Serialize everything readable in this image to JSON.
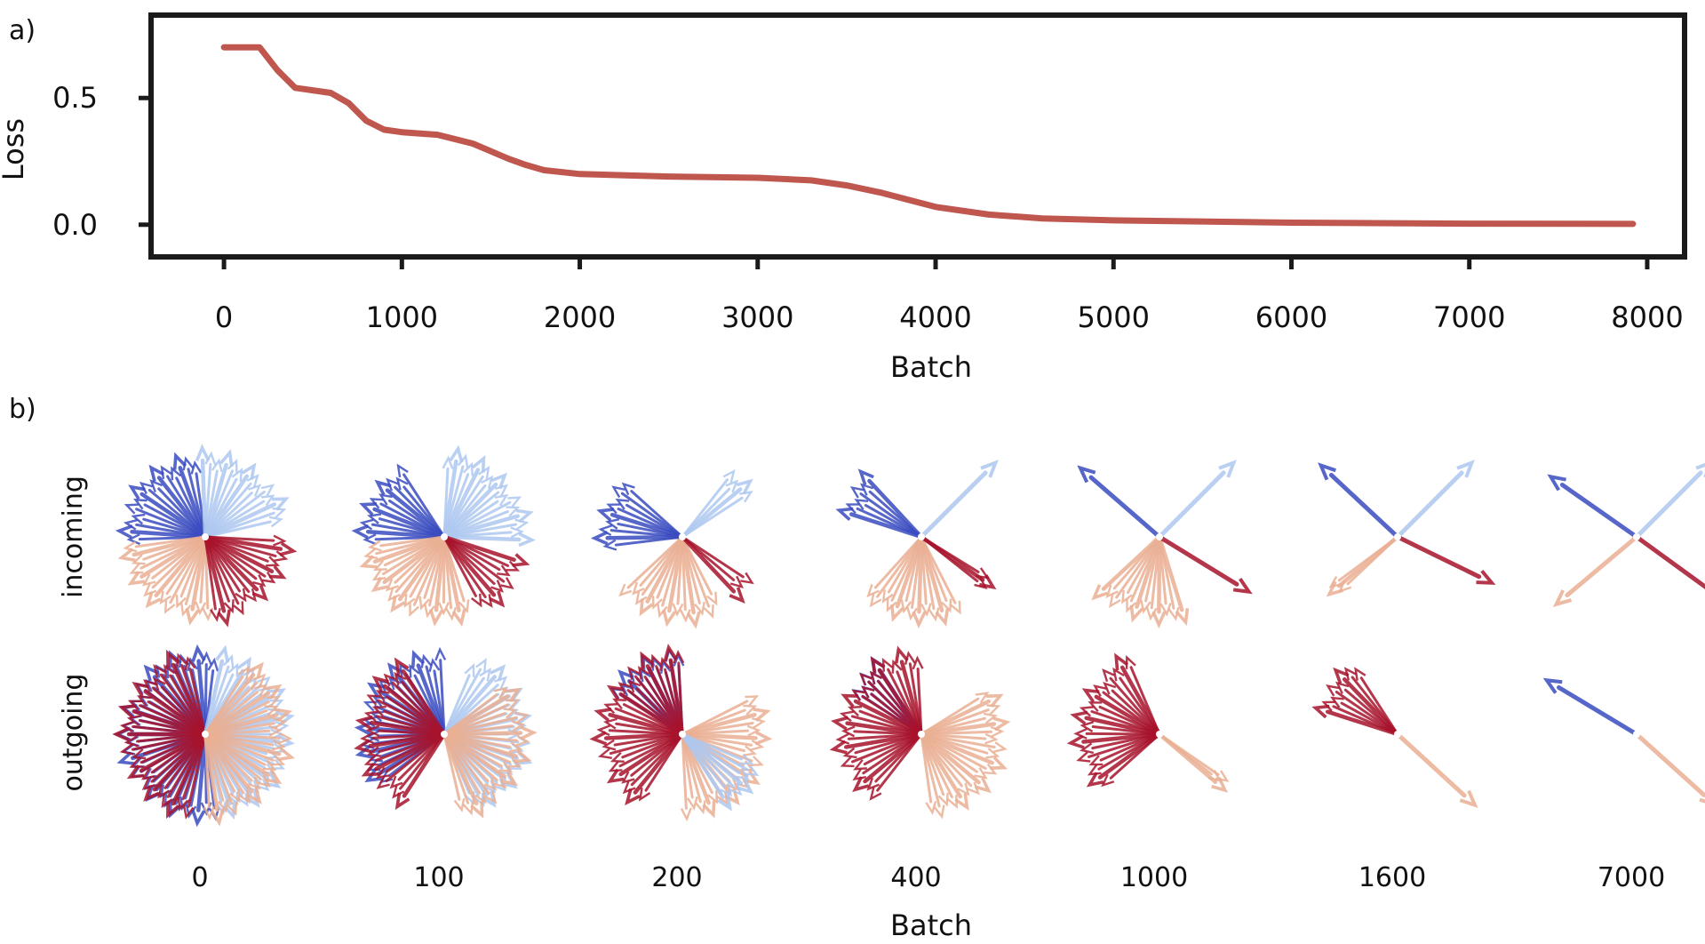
{
  "chart_data": [
    {
      "panel": "a)",
      "type": "line",
      "xlabel": "Batch",
      "ylabel": "Loss",
      "xlim": [
        -400,
        8200
      ],
      "ylim": [
        -0.12,
        0.82
      ],
      "xticks": [
        0,
        1000,
        2000,
        3000,
        4000,
        5000,
        6000,
        7000,
        8000
      ],
      "yticks": [
        0.0,
        0.5
      ],
      "ytick_labels": [
        "0.0",
        "0.5"
      ],
      "line_color": "#c0574f",
      "series": [
        {
          "name": "Loss",
          "x": [
            0,
            200,
            300,
            400,
            600,
            700,
            800,
            900,
            1000,
            1200,
            1400,
            1600,
            1700,
            1800,
            2000,
            2500,
            3000,
            3300,
            3500,
            3700,
            4000,
            4300,
            4600,
            5000,
            6000,
            7000,
            7920
          ],
          "y": [
            0.7,
            0.7,
            0.61,
            0.54,
            0.52,
            0.48,
            0.41,
            0.375,
            0.365,
            0.355,
            0.32,
            0.26,
            0.235,
            0.215,
            0.2,
            0.19,
            0.185,
            0.175,
            0.155,
            0.125,
            0.07,
            0.04,
            0.025,
            0.017,
            0.008,
            0.004,
            0.003
          ]
        }
      ]
    },
    {
      "panel": "b)",
      "type": "other",
      "description_kind": "vector fans",
      "xlabel": "Batch",
      "row_labels": [
        "incoming",
        "outgoing"
      ],
      "columns": [
        "0",
        "100",
        "200",
        "400",
        "1000",
        "1600",
        "7000"
      ],
      "colors": {
        "dark_blue": "#3a4cc0",
        "light_blue": "#aec8f0",
        "peach": "#eab094",
        "dark_red": "#a8132c"
      },
      "rows": {
        "incoming": [
          {
            "batch": 0,
            "groups": [
              {
                "color": "dark_blue",
                "from_deg": 95,
                "to_deg": 185
              },
              {
                "color": "light_blue",
                "from_deg": 10,
                "to_deg": 95
              },
              {
                "color": "peach",
                "from_deg": 185,
                "to_deg": 275
              },
              {
                "color": "dark_red",
                "from_deg": 275,
                "to_deg": 360
              }
            ]
          },
          {
            "batch": 100,
            "groups": [
              {
                "color": "dark_blue",
                "from_deg": 120,
                "to_deg": 185
              },
              {
                "color": "light_blue",
                "from_deg": -5,
                "to_deg": 90
              },
              {
                "color": "peach",
                "from_deg": 185,
                "to_deg": 290
              },
              {
                "color": "dark_red",
                "from_deg": 295,
                "to_deg": 345
              }
            ]
          },
          {
            "batch": 200,
            "groups": [
              {
                "color": "dark_blue",
                "from_deg": 135,
                "to_deg": 190
              },
              {
                "color": "light_blue",
                "from_deg": 30,
                "to_deg": 55
              },
              {
                "color": "peach",
                "from_deg": 220,
                "to_deg": 300
              },
              {
                "color": "dark_red",
                "from_deg": 310,
                "to_deg": 330
              }
            ]
          },
          {
            "batch": 400,
            "groups": [
              {
                "color": "dark_blue",
                "from_deg": 130,
                "to_deg": 165
              },
              {
                "color": "light_blue",
                "from_deg": 42,
                "to_deg": 48
              },
              {
                "color": "peach",
                "from_deg": 225,
                "to_deg": 300
              },
              {
                "color": "dark_red",
                "from_deg": 320,
                "to_deg": 330
              }
            ]
          },
          {
            "batch": 1000,
            "groups": [
              {
                "color": "dark_blue",
                "from_deg": 138,
                "to_deg": 140
              },
              {
                "color": "light_blue",
                "from_deg": 44,
                "to_deg": 46
              },
              {
                "color": "peach",
                "from_deg": 220,
                "to_deg": 290
              },
              {
                "color": "dark_red",
                "from_deg": 325,
                "to_deg": 332
              }
            ]
          },
          {
            "batch": 1600,
            "groups": [
              {
                "color": "dark_blue",
                "from_deg": 136,
                "to_deg": 138
              },
              {
                "color": "light_blue",
                "from_deg": 44,
                "to_deg": 46
              },
              {
                "color": "peach",
                "from_deg": 215,
                "to_deg": 225
              },
              {
                "color": "dark_red",
                "from_deg": 332,
                "to_deg": 336
              }
            ]
          },
          {
            "batch": 7000,
            "groups": [
              {
                "color": "dark_blue",
                "from_deg": 144,
                "to_deg": 146
              },
              {
                "color": "light_blue",
                "from_deg": 44,
                "to_deg": 46
              },
              {
                "color": "peach",
                "from_deg": 218,
                "to_deg": 222
              },
              {
                "color": "dark_red",
                "from_deg": 322,
                "to_deg": 326
              }
            ]
          }
        ],
        "outgoing": [
          {
            "batch": 0,
            "groups": [
              {
                "color": "dark_blue",
                "from_deg": 80,
                "to_deg": 280
              },
              {
                "color": "dark_red",
                "from_deg": 100,
                "to_deg": 260
              },
              {
                "color": "light_blue",
                "from_deg": -80,
                "to_deg": 80
              },
              {
                "color": "peach",
                "from_deg": -90,
                "to_deg": 60
              }
            ]
          },
          {
            "batch": 100,
            "groups": [
              {
                "color": "dark_blue",
                "from_deg": 90,
                "to_deg": 220
              },
              {
                "color": "dark_red",
                "from_deg": 120,
                "to_deg": 240
              },
              {
                "color": "light_blue",
                "from_deg": -70,
                "to_deg": 70
              },
              {
                "color": "peach",
                "from_deg": -80,
                "to_deg": 40
              }
            ]
          },
          {
            "batch": 200,
            "groups": [
              {
                "color": "dark_blue",
                "from_deg": 90,
                "to_deg": 150
              },
              {
                "color": "dark_red",
                "from_deg": 90,
                "to_deg": 240
              },
              {
                "color": "peach",
                "from_deg": -90,
                "to_deg": 30
              },
              {
                "color": "light_blue",
                "from_deg": -60,
                "to_deg": -20
              }
            ]
          },
          {
            "batch": 400,
            "groups": [
              {
                "color": "dark_blue",
                "from_deg": 120,
                "to_deg": 150
              },
              {
                "color": "dark_red",
                "from_deg": 90,
                "to_deg": 235
              },
              {
                "color": "peach",
                "from_deg": -85,
                "to_deg": 35
              }
            ]
          },
          {
            "batch": 1000,
            "groups": [
              {
                "color": "dark_red",
                "from_deg": 110,
                "to_deg": 225
              },
              {
                "color": "peach",
                "from_deg": -42,
                "to_deg": -33
              }
            ]
          },
          {
            "batch": 1600,
            "groups": [
              {
                "color": "dark_red",
                "from_deg": 120,
                "to_deg": 165
              },
              {
                "color": "peach",
                "from_deg": -45,
                "to_deg": -40
              }
            ]
          },
          {
            "batch": 7000,
            "groups": [
              {
                "color": "dark_blue",
                "from_deg": 148,
                "to_deg": 150
              },
              {
                "color": "peach",
                "from_deg": -43,
                "to_deg": -41
              }
            ]
          }
        ]
      }
    }
  ],
  "panel_labels": {
    "a": "a)",
    "b": "b)"
  }
}
